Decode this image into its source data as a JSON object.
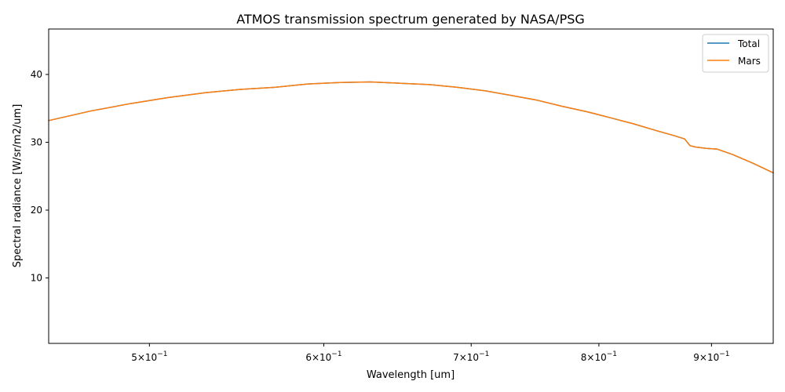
{
  "chart_data": {
    "type": "line",
    "title": "ATMOS transmission spectrum generated by NASA/PSG",
    "xlabel": "Wavelength [um]",
    "ylabel": "Spectral radiance [W/sr/m2/um]",
    "xscale": "log",
    "xlim": [
      0.45,
      0.96
    ],
    "ylim": [
      0.35,
      46.7
    ],
    "grid": false,
    "legend_position": "top-right",
    "x_ticks": [
      {
        "value": 0.5,
        "mantissa": "5",
        "exponent": "−1"
      },
      {
        "value": 0.6,
        "mantissa": "6",
        "exponent": "−1"
      },
      {
        "value": 0.7,
        "mantissa": "7",
        "exponent": "−1"
      },
      {
        "value": 0.8,
        "mantissa": "8",
        "exponent": "−1"
      },
      {
        "value": 0.9,
        "mantissa": "9",
        "exponent": "−1"
      }
    ],
    "y_ticks": [
      {
        "value": 10,
        "label": "10"
      },
      {
        "value": 20,
        "label": "20"
      },
      {
        "value": 30,
        "label": "30"
      },
      {
        "value": 40,
        "label": "40"
      }
    ],
    "x": [
      0.45,
      0.47,
      0.49,
      0.51,
      0.53,
      0.55,
      0.57,
      0.59,
      0.61,
      0.63,
      0.65,
      0.67,
      0.69,
      0.71,
      0.73,
      0.75,
      0.77,
      0.79,
      0.81,
      0.83,
      0.85,
      0.865,
      0.875,
      0.88,
      0.885,
      0.895,
      0.905,
      0.92,
      0.94,
      0.96
    ],
    "series": [
      {
        "name": "Total",
        "color": "#1f77b4",
        "values": [
          33.2,
          34.6,
          35.7,
          36.6,
          37.3,
          37.8,
          38.1,
          38.6,
          38.8,
          38.9,
          38.7,
          38.5,
          38.1,
          37.6,
          36.9,
          36.2,
          35.3,
          34.5,
          33.6,
          32.7,
          31.7,
          31.0,
          30.5,
          29.5,
          29.3,
          29.1,
          29.0,
          28.2,
          26.9,
          25.5
        ]
      },
      {
        "name": "Mars",
        "color": "#ff7f0e",
        "values": [
          33.2,
          34.6,
          35.7,
          36.6,
          37.3,
          37.8,
          38.1,
          38.6,
          38.8,
          38.9,
          38.7,
          38.5,
          38.1,
          37.6,
          36.9,
          36.2,
          35.3,
          34.5,
          33.6,
          32.7,
          31.7,
          31.0,
          30.5,
          29.5,
          29.3,
          29.1,
          29.0,
          28.2,
          26.9,
          25.5
        ]
      }
    ]
  }
}
